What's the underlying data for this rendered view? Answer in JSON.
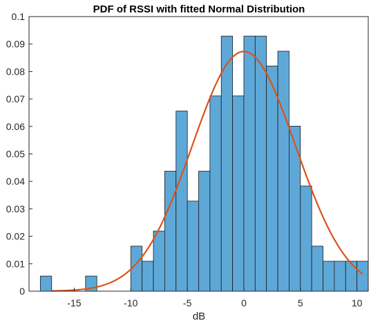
{
  "chart_data": {
    "type": "bar",
    "title": "PDF of RSSI with fitted Normal Distribution",
    "xlabel": "dB",
    "ylabel": "",
    "xlim": [
      -19.0,
      11.0
    ],
    "ylim": [
      0,
      0.1
    ],
    "xticks": [
      -15,
      -10,
      -5,
      0,
      5,
      10
    ],
    "xtick_labels": [
      "-15",
      "-10",
      "-5",
      "0",
      "5",
      "10"
    ],
    "yticks": [
      0,
      0.01,
      0.02,
      0.03,
      0.04,
      0.05,
      0.06,
      0.07,
      0.08,
      0.09,
      0.1
    ],
    "ytick_labels": [
      "0",
      "0.01",
      "0.02",
      "0.03",
      "0.04",
      "0.05",
      "0.06",
      "0.07",
      "0.08",
      "0.09",
      "0.1"
    ],
    "bar_fill": "#5ea8d8",
    "bar_edge": "#1a1a1a",
    "curve_color": "#d95319",
    "histogram": {
      "bin_edges": [
        -18.0,
        -17.0,
        -16.0,
        -15.0,
        -14.0,
        -13.0,
        -12.0,
        -11.0,
        -10.0,
        -9.0,
        -8.0,
        -7.0,
        -6.0,
        -5.0,
        -4.0,
        -3.0,
        -2.0,
        -1.0,
        0.0,
        1.0,
        2.0,
        3.0,
        4.0,
        5.0,
        6.0,
        7.0,
        8.0,
        9.0,
        10.0,
        11.0
      ],
      "values": [
        0.0055,
        0,
        0,
        0,
        0.0055,
        0,
        0,
        0,
        0.0164,
        0.0109,
        0.0219,
        0.0437,
        0.0656,
        0.0328,
        0.0437,
        0.0711,
        0.0929,
        0.0711,
        0.0929,
        0.0929,
        0.082,
        0.0874,
        0.0601,
        0.0383,
        0.0164,
        0.0109,
        0.0109,
        0.0109,
        0.0109
      ]
    },
    "fitted_normal": {
      "name": "",
      "mu": 0.0,
      "sigma": 4.57,
      "x_range": [
        -17.0,
        10.5
      ]
    },
    "grid": false,
    "legend": "none"
  }
}
